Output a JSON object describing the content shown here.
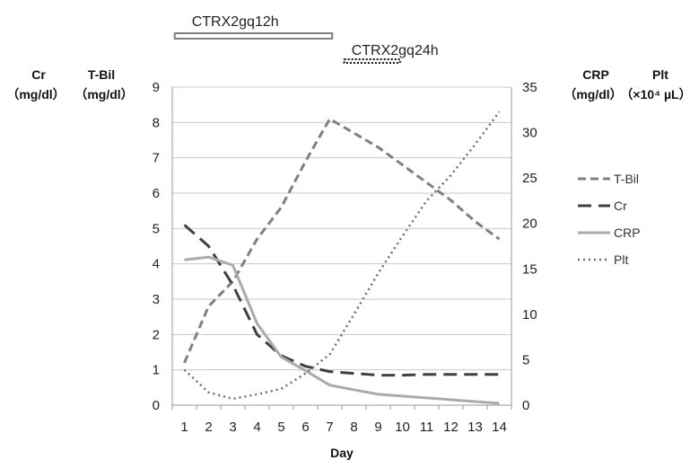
{
  "chart_data": {
    "type": "line",
    "x": [
      1,
      2,
      3,
      4,
      5,
      6,
      7,
      8,
      9,
      10,
      11,
      12,
      13,
      14
    ],
    "xlabel": "Day",
    "y_left": {
      "labels": [
        "Cr",
        "T-Bil"
      ],
      "units": [
        "（mg/dl）",
        "（mg/dl）"
      ],
      "ylim": [
        0,
        9
      ],
      "ticks": [
        0,
        1,
        2,
        3,
        4,
        5,
        6,
        7,
        8,
        9
      ]
    },
    "y_right": {
      "labels": [
        "CRP",
        "Plt"
      ],
      "units": [
        "（mg/dl）",
        "（×10⁴ µL）"
      ],
      "ylim": [
        0,
        35
      ],
      "ticks": [
        0,
        5,
        10,
        15,
        20,
        25,
        30,
        35
      ]
    },
    "grid": "horizontal",
    "legend": "right",
    "series": [
      {
        "name": "T-Bil",
        "axis": "left",
        "style": "dashed",
        "color": "#808080",
        "values": [
          1.2,
          2.8,
          3.5,
          4.7,
          5.6,
          6.9,
          8.1,
          7.7,
          7.3,
          6.8,
          6.3,
          5.8,
          5.2,
          4.7
        ]
      },
      {
        "name": "Cr",
        "axis": "left",
        "style": "long-dashed",
        "color": "#404040",
        "values": [
          5.1,
          4.5,
          3.4,
          2.0,
          1.4,
          1.1,
          0.95,
          0.9,
          0.85,
          0.85,
          0.87,
          0.87,
          0.87,
          0.87
        ]
      },
      {
        "name": "CRP",
        "axis": "right",
        "style": "solid",
        "color": "#ababab",
        "values": [
          16.0,
          16.3,
          15.4,
          9.0,
          5.3,
          3.8,
          2.2,
          1.7,
          1.2,
          1.0,
          0.8,
          0.6,
          0.4,
          0.2
        ]
      },
      {
        "name": "Plt",
        "axis": "right",
        "style": "dotted",
        "color": "#6e6e6e",
        "values": [
          3.9,
          1.4,
          0.7,
          1.2,
          1.8,
          3.5,
          5.6,
          10.0,
          14.5,
          18.6,
          22.5,
          25.3,
          28.7,
          32.3
        ]
      }
    ],
    "annotations": [
      {
        "label": "CTRX2gq12h",
        "style": "double-bar",
        "from_day": 0.6,
        "to_day": 7.1
      },
      {
        "label": "CTRX2gq24h",
        "style": "dotted-bar",
        "from_day": 7.6,
        "to_day": 9.9
      }
    ]
  }
}
